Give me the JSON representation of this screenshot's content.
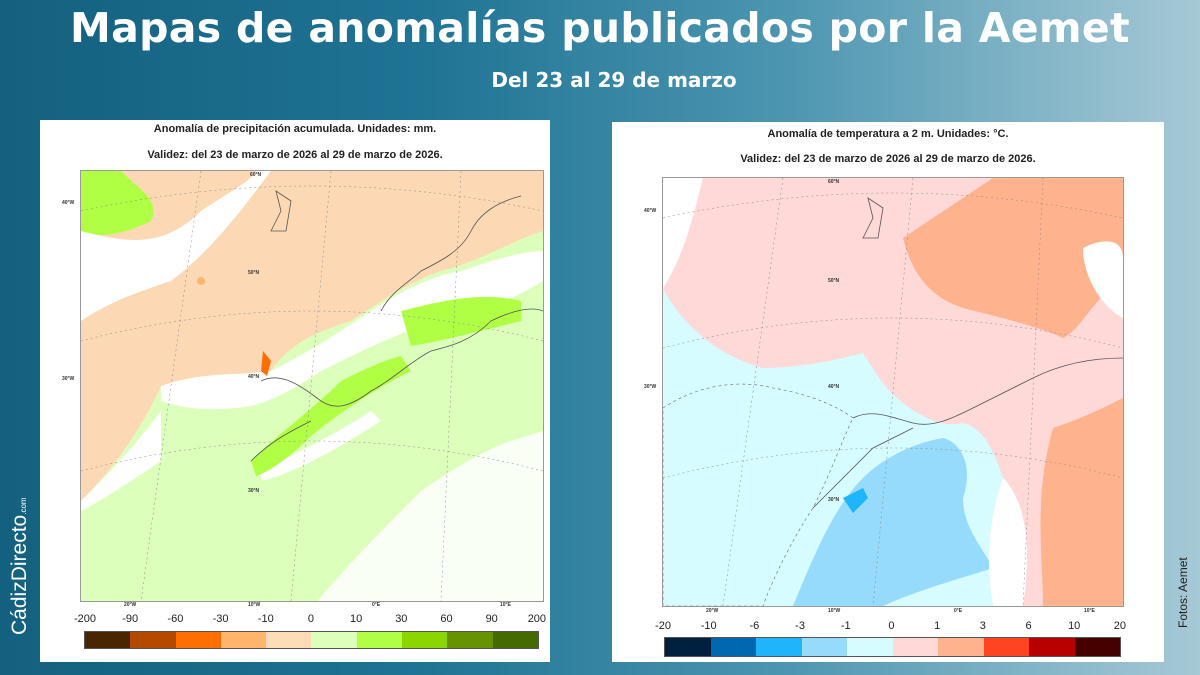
{
  "header": {
    "title": "Mapas de anomalías publicados por la Aemet",
    "subtitle": "Del 23 al 29 de marzo"
  },
  "precip_map": {
    "title": "Anomalía de precipitación acumulada. Unidades: mm.",
    "validity": "Validez: del 23 de marzo de 2026 al 29 de marzo de 2026.",
    "colorbar": {
      "labels": [
        "-200",
        "-90",
        "-60",
        "-30",
        "-10",
        "0",
        "10",
        "30",
        "60",
        "90",
        "200"
      ],
      "colors": [
        "#4a2600",
        "#b34a00",
        "#ff6e00",
        "#ffb56b",
        "#ffdcb8",
        "#dcffbc",
        "#b0ff45",
        "#8cd600",
        "#669400",
        "#436b00"
      ]
    }
  },
  "temp_map": {
    "title": "Anomalía de temperatura a 2 m. Unidades: °C.",
    "validity": "Validez: del 23 de marzo de 2026 al 29 de marzo de 2026.",
    "colorbar": {
      "labels": [
        "-20",
        "-10",
        "-6",
        "-3",
        "-1",
        "0",
        "1",
        "3",
        "6",
        "10",
        "20"
      ],
      "colors": [
        "#00203f",
        "#0068b0",
        "#20b4fa",
        "#96dafc",
        "#d6fcff",
        "#ffd8d8",
        "#ffb38c",
        "#ff4520",
        "#b80000",
        "#460000"
      ]
    }
  },
  "graticule": {
    "lat": [
      "60°N",
      "50°N",
      "40°N",
      "30°N"
    ],
    "lon_left": [
      "40°W",
      "30°W"
    ],
    "lon_bottom": [
      "20°W",
      "10°W",
      "0°E",
      "10°E"
    ]
  },
  "logo": {
    "name": "CádizDirecto",
    "suffix": ".com"
  },
  "credit": "Fotos: Aemet"
}
